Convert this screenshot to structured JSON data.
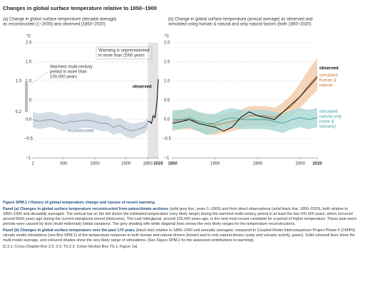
{
  "title": "Changes in global surface temperature relative to 1850–1900",
  "chart_data": [
    {
      "type": "line",
      "subtitle": [
        "(a) Change in global surface temperature (decadal average)",
        "as reconstructed (1–2000) and observed (1850–2020)"
      ],
      "unit": "°C",
      "xlim": [
        1,
        2020
      ],
      "xticks": [
        1,
        500,
        1000,
        1500,
        1850,
        2020
      ],
      "ylim": [
        -1,
        2
      ],
      "yticks": [
        {
          "value": -1,
          "label": "–1"
        },
        {
          "value": -0.5,
          "label": "–0.5"
        },
        {
          "value": 0,
          "label": "0.0"
        },
        {
          "value": 0.5,
          "label": "0.5"
        },
        {
          "value": 1,
          "label": "1.0"
        },
        {
          "value": 1.5,
          "label": "1.5"
        },
        {
          "value": 2,
          "label": "2.0"
        }
      ],
      "grid": true,
      "shaded_period": [
        1850,
        2020
      ],
      "warm_bar": {
        "values": [
          0.2,
          1.0
        ],
        "value_labels": [
          "0.2",
          "1.0"
        ],
        "color": "#b8bcc2"
      },
      "series": [
        {
          "name": "reconstructed",
          "color": "#7f93ab",
          "band_color": "#c9d3de",
          "x": [
            1,
            100,
            200,
            300,
            400,
            500,
            600,
            700,
            800,
            900,
            1000,
            1100,
            1200,
            1300,
            1400,
            1500,
            1600,
            1700,
            1800,
            1850
          ],
          "values": [
            0.0,
            -0.05,
            -0.02,
            0.0,
            -0.05,
            -0.1,
            -0.05,
            -0.05,
            -0.02,
            -0.02,
            -0.05,
            -0.1,
            -0.1,
            -0.2,
            -0.15,
            -0.25,
            -0.3,
            -0.25,
            -0.2,
            -0.1
          ],
          "lower": [
            -0.2,
            -0.25,
            -0.22,
            -0.2,
            -0.25,
            -0.3,
            -0.25,
            -0.25,
            -0.22,
            -0.22,
            -0.25,
            -0.3,
            -0.3,
            -0.4,
            -0.35,
            -0.45,
            -0.5,
            -0.42,
            -0.35,
            -0.25
          ],
          "upper": [
            0.2,
            0.15,
            0.18,
            0.2,
            0.15,
            0.1,
            0.15,
            0.15,
            0.18,
            0.18,
            0.15,
            0.1,
            0.1,
            0.0,
            0.05,
            -0.05,
            -0.1,
            -0.08,
            -0.05,
            0.05
          ]
        },
        {
          "name": "observed",
          "color": "#111111",
          "x": [
            1850,
            1880,
            1910,
            1940,
            1970,
            2000,
            2020
          ],
          "values": [
            -0.05,
            -0.05,
            -0.1,
            0.1,
            0.05,
            0.5,
            1.05
          ]
        }
      ],
      "annotations": [
        [
          "Warming is unprecedented",
          "in more than 2000 years"
        ],
        [
          "Warmest multi-century",
          "period in more than",
          "100,000 years"
        ]
      ]
    },
    {
      "type": "line",
      "subtitle": [
        "(b) Change in global surface temperature (annual average) as observed and",
        "simulated using human & natural and only natural factors (both 1850–2020)"
      ],
      "unit": "°C",
      "xlim": [
        1850,
        2020
      ],
      "xticks": [
        1850,
        1900,
        1950,
        2000,
        2020
      ],
      "ylim": [
        -1,
        2
      ],
      "yticks": [
        {
          "value": -1,
          "label": "–1"
        },
        {
          "value": -0.5,
          "label": "–0.5"
        },
        {
          "value": 0,
          "label": "0.0"
        },
        {
          "value": 0.5,
          "label": "0.5"
        },
        {
          "value": 1,
          "label": "1.0"
        },
        {
          "value": 1.5,
          "label": "1.5"
        },
        {
          "value": 2,
          "label": "2.0"
        }
      ],
      "grid": true,
      "series": [
        {
          "name": [
            "simulated",
            "human &",
            "natural"
          ],
          "color": "#c0763a",
          "band_color": "#f3cba8",
          "x": [
            1850,
            1860,
            1870,
            1880,
            1890,
            1900,
            1910,
            1920,
            1930,
            1940,
            1950,
            1960,
            1970,
            1980,
            1990,
            2000,
            2010,
            2020
          ],
          "values": [
            -0.05,
            0.0,
            0.0,
            -0.05,
            -0.1,
            -0.15,
            -0.1,
            -0.05,
            0.0,
            0.1,
            0.1,
            0.1,
            0.05,
            0.2,
            0.35,
            0.6,
            0.9,
            1.15
          ],
          "lower": [
            -0.3,
            -0.25,
            -0.25,
            -0.3,
            -0.4,
            -0.4,
            -0.35,
            -0.3,
            -0.25,
            -0.15,
            -0.15,
            -0.15,
            -0.2,
            -0.05,
            0.1,
            0.3,
            0.55,
            0.75
          ],
          "upper": [
            0.2,
            0.25,
            0.25,
            0.2,
            0.15,
            0.1,
            0.15,
            0.2,
            0.25,
            0.35,
            0.35,
            0.35,
            0.3,
            0.45,
            0.65,
            0.95,
            1.3,
            1.6
          ]
        },
        {
          "name": [
            "simulated",
            "natural only",
            "(solar &",
            "volcanic)"
          ],
          "color": "#3d9f9c",
          "band_color": "#a8d8d5",
          "x": [
            1850,
            1860,
            1870,
            1880,
            1890,
            1900,
            1910,
            1920,
            1930,
            1940,
            1950,
            1960,
            1970,
            1980,
            1990,
            2000,
            2010,
            2020
          ],
          "values": [
            0.0,
            0.0,
            0.05,
            -0.05,
            -0.1,
            -0.1,
            0.0,
            0.05,
            0.0,
            0.0,
            0.0,
            0.0,
            -0.05,
            -0.1,
            0.0,
            0.05,
            0.0,
            0.05
          ],
          "lower": [
            -0.25,
            -0.25,
            -0.2,
            -0.3,
            -0.4,
            -0.35,
            -0.25,
            -0.2,
            -0.25,
            -0.25,
            -0.25,
            -0.25,
            -0.3,
            -0.35,
            -0.25,
            -0.2,
            -0.25,
            -0.2
          ],
          "upper": [
            0.25,
            0.25,
            0.3,
            0.2,
            0.15,
            0.15,
            0.25,
            0.3,
            0.25,
            0.25,
            0.25,
            0.25,
            0.2,
            0.15,
            0.25,
            0.3,
            0.25,
            0.3
          ]
        },
        {
          "name": "observed",
          "color": "#111111",
          "x": [
            1850,
            1860,
            1870,
            1880,
            1890,
            1900,
            1910,
            1920,
            1930,
            1940,
            1950,
            1960,
            1970,
            1980,
            1990,
            2000,
            2010,
            2020
          ],
          "values": [
            -0.1,
            -0.05,
            0.0,
            -0.1,
            -0.15,
            -0.2,
            -0.3,
            -0.2,
            0.05,
            0.2,
            0.1,
            0.05,
            0.0,
            0.2,
            0.4,
            0.6,
            0.85,
            1.1
          ]
        }
      ]
    }
  ],
  "caption": {
    "heading": "Figure SPM.1 | History of global temperature change and causes of recent warming",
    "panel_a_lead": "Panel (a) Changes in global surface temperature reconstructed from paleoclimate archives",
    "panel_a_body": "(solid grey line, years 1–2000) and from direct observations (solid black line, 1850–2020), both relative to 1850–1900 and decadally averaged. The vertical bar on the left shows the estimated temperature (very likely range) during the warmest multi-century period in at least the last 100,000 years, which occurred around 6500 years ago during the current interglacial period (Holocene). The Last Interglacial, around 125,000 years ago, is the next most recent candidate for a period of higher temperature. These past warm periods were caused by slow (multi-millennial) orbital variations. The grey shading with white diagonal lines shows the very likely ranges for the temperature reconstructions.",
    "panel_b_lead": "Panel (b) Changes in global surface temperature over the past 170 years",
    "panel_b_body": "(black line) relative to 1850–1900 and annually averaged, compared to Coupled Model Intercomparison Project Phase 6 (CMIP6) climate model simulations (see Box SPM.1) of the temperature response to both human and natural drivers (brown) and to only natural drivers (solar and volcanic activity, green). Solid coloured lines show the multi-model average, and coloured shades show the very likely range of simulations. (See Figure SPM.2 for the assessed contributions to warming).",
    "refs": "[2.3.1; Cross-Chapter Box 2.3; 3.3; TS.2.2; Cross-Section Box TS.1, Figure 1a]"
  }
}
